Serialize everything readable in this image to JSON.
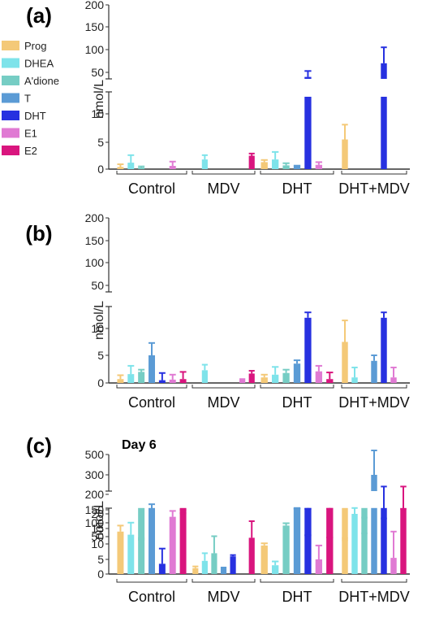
{
  "legend": {
    "items": [
      {
        "name": "Prog",
        "color": "#f4c978"
      },
      {
        "name": "DHEA",
        "color": "#7ee3ea"
      },
      {
        "name": "A'dione",
        "color": "#76cdc4"
      },
      {
        "name": "T",
        "color": "#5b9bd5"
      },
      {
        "name": "DHT",
        "color": "#2731e0"
      },
      {
        "name": "E1",
        "color": "#e07ad3"
      },
      {
        "name": "E2",
        "color": "#d9157e"
      }
    ]
  },
  "chart_data": [
    {
      "type": "bar",
      "panel_label": "(a)",
      "annotation": "",
      "ylabel": "nmol/L",
      "groups": [
        "Control",
        "MDV",
        "DHT",
        "DHT+MDV"
      ],
      "series": [
        {
          "name": "Prog",
          "values": [
            0.4,
            0,
            1.3,
            5.5
          ],
          "errors": [
            0.5,
            0,
            0.4,
            2.6
          ]
        },
        {
          "name": "DHEA",
          "values": [
            1.2,
            1.8,
            1.8,
            0
          ],
          "errors": [
            1.4,
            0.8,
            1.4,
            0
          ]
        },
        {
          "name": "A'dione",
          "values": [
            0.3,
            0,
            0.7,
            0
          ],
          "errors": [
            0.2,
            0,
            0.4,
            0
          ]
        },
        {
          "name": "T",
          "values": [
            0,
            0,
            0.8,
            0
          ],
          "errors": [
            0,
            0,
            0,
            0
          ]
        },
        {
          "name": "DHT",
          "values": [
            0,
            0,
            40,
            70
          ],
          "errors": [
            0,
            0,
            13,
            35
          ]
        },
        {
          "name": "E1",
          "values": [
            0.6,
            0,
            0.8,
            0
          ],
          "errors": [
            0.8,
            0,
            0.5,
            0
          ]
        },
        {
          "name": "E2",
          "values": [
            0,
            2.5,
            0,
            0
          ],
          "errors": [
            0,
            0.4,
            0,
            0
          ]
        }
      ],
      "yticks_lower": [
        "0",
        "5",
        "10"
      ],
      "yticks_upper": [
        "50",
        "100",
        "150",
        "200"
      ],
      "axis_break": [
        13,
        35
      ],
      "ylim": [
        0,
        200
      ]
    },
    {
      "type": "bar",
      "panel_label": "(b)",
      "annotation": "",
      "ylabel": "nmol/L",
      "groups": [
        "Control",
        "MDV",
        "DHT",
        "DHT+MDV"
      ],
      "series": [
        {
          "name": "Prog",
          "values": [
            0.7,
            0,
            1.0,
            7.5
          ],
          "errors": [
            0.7,
            0,
            0.5,
            4.0
          ]
        },
        {
          "name": "DHEA",
          "values": [
            1.6,
            2.3,
            1.5,
            1.0
          ],
          "errors": [
            1.5,
            1.0,
            1.4,
            1.8
          ]
        },
        {
          "name": "A'dione",
          "values": [
            2.0,
            0,
            1.8,
            0
          ],
          "errors": [
            0.4,
            0,
            0.6,
            0
          ]
        },
        {
          "name": "T",
          "values": [
            5.0,
            0,
            3.5,
            4.0
          ],
          "errors": [
            2.3,
            0,
            0.6,
            1.0
          ]
        },
        {
          "name": "DHT",
          "values": [
            0.5,
            0,
            12,
            12
          ],
          "errors": [
            1.3,
            0,
            1.0,
            1.2
          ]
        },
        {
          "name": "E1",
          "values": [
            0.6,
            0.6,
            2.1,
            1.0
          ],
          "errors": [
            0.9,
            0.1,
            1.0,
            1.8
          ]
        },
        {
          "name": "E2",
          "values": [
            0.7,
            1.7,
            0.7,
            0
          ],
          "errors": [
            1.3,
            0.5,
            1.2,
            0
          ]
        }
      ],
      "yticks_lower": [
        "0",
        "5",
        "10"
      ],
      "yticks_upper": [
        "50",
        "100",
        "150",
        "200"
      ],
      "axis_break": [
        13,
        35
      ],
      "ylim": [
        0,
        200
      ]
    },
    {
      "type": "bar",
      "panel_label": "(c)",
      "annotation": "Day 6",
      "ylabel": "nmol/L",
      "groups": [
        "Control",
        "MDV",
        "DHT",
        "DHT+MDV"
      ],
      "series": [
        {
          "name": "Prog",
          "values": [
            14,
            2.0,
            9.5,
            40
          ],
          "errors": [
            2.0,
            0.6,
            0.7,
            5
          ]
        },
        {
          "name": "DHEA",
          "values": [
            13,
            4.5,
            3.0,
            20
          ],
          "errors": [
            4.0,
            2.5,
            1.3,
            3
          ]
        },
        {
          "name": "A'dione",
          "values": [
            42,
            7.0,
            16,
            65
          ],
          "errors": [
            3,
            5.5,
            0.8,
            55
          ]
        },
        {
          "name": "T",
          "values": [
            150,
            2.5,
            28,
            300
          ],
          "errors": [
            18,
            0,
            5,
            240
          ]
        },
        {
          "name": "DHT",
          "values": [
            3.5,
            6.0,
            30,
            120
          ],
          "errors": [
            5.0,
            0.4,
            25,
            120
          ]
        },
        {
          "name": "E1",
          "values": [
            19,
            0,
            5.0,
            5.5
          ],
          "errors": [
            2.0,
            0,
            4.5,
            8.5
          ]
        },
        {
          "name": "E2",
          "values": [
            140,
            12,
            35,
            155
          ],
          "errors": [
            10,
            5.5,
            12,
            85
          ]
        }
      ],
      "yticks_lower": [
        "0",
        "5",
        "10",
        "15",
        "20"
      ],
      "yticks_upper": [
        "50",
        "100",
        "150",
        "200",
        "300",
        "500"
      ],
      "axis_break": [
        22,
        40
      ],
      "ylim": [
        0,
        600
      ]
    }
  ]
}
